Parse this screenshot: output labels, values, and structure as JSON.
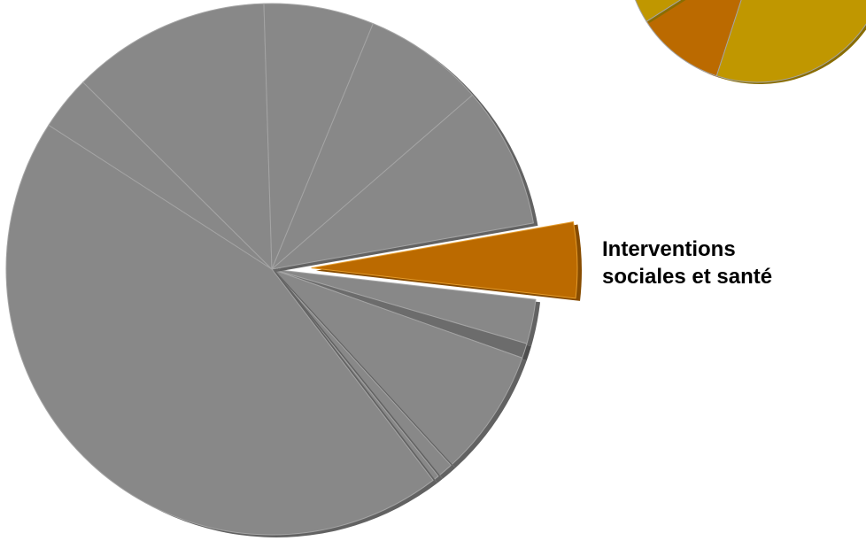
{
  "chart_data": [
    {
      "type": "pie",
      "highlight_index": 0,
      "slices": [
        {
          "label": "Interventions sociales et santé",
          "value": 4.6,
          "color": "#bb6a00"
        },
        {
          "label": "",
          "value": 2.7,
          "color": "#888888"
        },
        {
          "label": "",
          "value": 0.9,
          "color": "#6c6c6c"
        },
        {
          "label": "",
          "value": 7.8,
          "color": "#888888"
        },
        {
          "label": "",
          "value": 1.0,
          "color": "#888888"
        },
        {
          "label": "",
          "value": 0.4,
          "color": "#888888"
        },
        {
          "label": "",
          "value": 44.5,
          "color": "#888888"
        },
        {
          "label": "",
          "value": 3.3,
          "color": "#888888"
        },
        {
          "label": "",
          "value": 12.1,
          "color": "#888888"
        },
        {
          "label": "",
          "value": 6.7,
          "color": "#888888"
        },
        {
          "label": "",
          "value": 7.4,
          "color": "#888888"
        },
        {
          "label": "",
          "value": 8.6,
          "color": "#888888"
        }
      ]
    },
    {
      "type": "pie",
      "partially_visible": true,
      "slices": [
        {
          "label": "",
          "value": 11,
          "color": "#bb6a00"
        },
        {
          "label": "",
          "value": 89,
          "color": "#c09700"
        }
      ]
    }
  ],
  "callout": {
    "line1": "Interventions",
    "line2": "sociales et santé"
  }
}
